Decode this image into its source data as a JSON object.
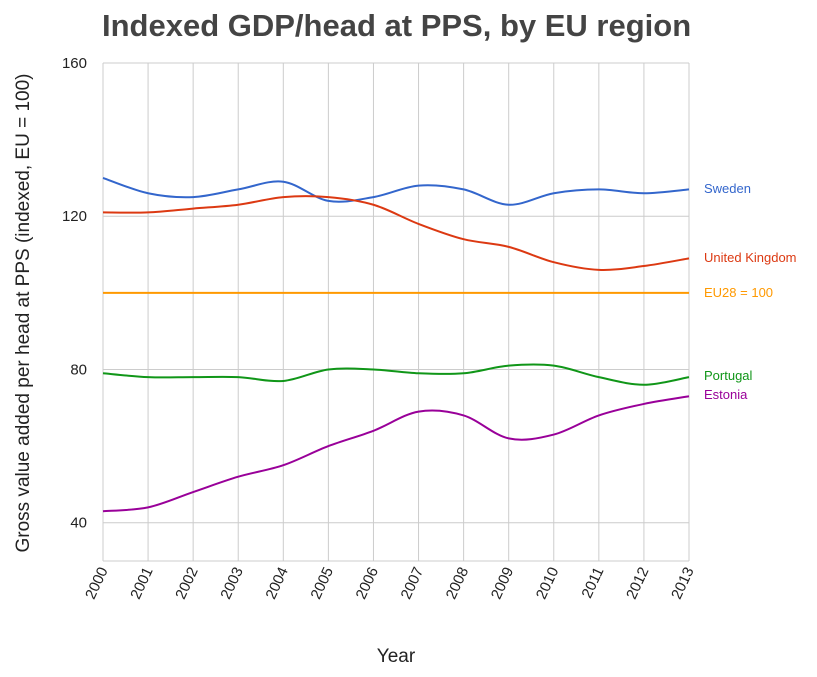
{
  "chart_data": {
    "type": "line",
    "title": "Indexed GDP/head at PPS, by EU region",
    "xlabel": "Year",
    "ylabel": "Gross value added per head at PPS (indexed, EU = 100)",
    "x": [
      2000,
      2001,
      2002,
      2003,
      2004,
      2005,
      2006,
      2007,
      2008,
      2009,
      2010,
      2011,
      2012,
      2013
    ],
    "ylim": [
      30,
      160
    ],
    "yticks": [
      40,
      80,
      120,
      160
    ],
    "grid": true,
    "legend": "right-end labels",
    "series": [
      {
        "name": "Sweden",
        "color": "#3366cc",
        "values": [
          130,
          126,
          125,
          127,
          129,
          124,
          125,
          128,
          127,
          123,
          126,
          127,
          126,
          127
        ]
      },
      {
        "name": "United Kingdom",
        "color": "#dc3912",
        "values": [
          121,
          121,
          122,
          123,
          125,
          125,
          123,
          118,
          114,
          112,
          108,
          106,
          107,
          109
        ]
      },
      {
        "name": "EU28 = 100",
        "color": "#ff9900",
        "values": [
          100,
          100,
          100,
          100,
          100,
          100,
          100,
          100,
          100,
          100,
          100,
          100,
          100,
          100
        ]
      },
      {
        "name": "Portugal",
        "color": "#109618",
        "values": [
          79,
          78,
          78,
          78,
          77,
          80,
          80,
          79,
          79,
          81,
          81,
          78,
          76,
          78
        ]
      },
      {
        "name": "Estonia",
        "color": "#990099",
        "values": [
          43,
          44,
          48,
          52,
          55,
          60,
          64,
          69,
          68,
          62,
          63,
          68,
          71,
          73
        ]
      }
    ]
  }
}
